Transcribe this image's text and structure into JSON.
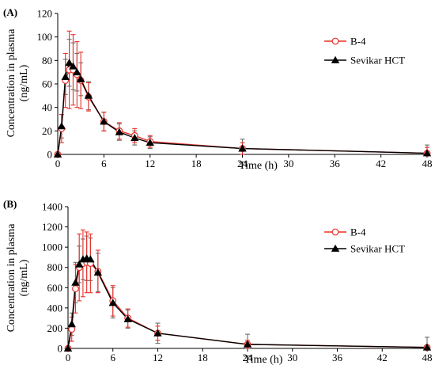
{
  "chart_data": [
    {
      "type": "line",
      "panel_label": "(A)",
      "xlabel": "Time (h)",
      "ylabel": "Concentration in plasma (ng/mL)",
      "xlim": [
        0,
        48
      ],
      "ylim": [
        0,
        120
      ],
      "x_ticks": [
        0,
        6,
        12,
        18,
        24,
        30,
        36,
        42,
        48
      ],
      "y_ticks": [
        0,
        20,
        40,
        60,
        80,
        100,
        120
      ],
      "legend_position": "top-right",
      "colors": {
        "B-4": "#e8312a",
        "Sevikar HCT": "#000000",
        "error_bar_sevikar": "#6e6e6e"
      },
      "series": [
        {
          "name": "B-4",
          "marker": "open-circle",
          "x": [
            0,
            0.5,
            1,
            1.5,
            2,
            2.5,
            3,
            4,
            6,
            8,
            10,
            12,
            24,
            48
          ],
          "values": [
            0,
            22,
            63,
            72,
            72,
            68,
            63,
            49,
            28,
            20,
            16,
            11,
            5,
            1
          ],
          "errors": [
            0,
            12,
            23,
            33,
            30,
            28,
            24,
            12,
            8,
            7,
            6,
            5,
            5,
            5
          ]
        },
        {
          "name": "Sevikar HCT",
          "marker": "filled-triangle",
          "x": [
            0,
            0.5,
            1,
            1.5,
            2,
            2.5,
            3,
            4,
            6,
            8,
            10,
            12,
            24,
            48
          ],
          "values": [
            0,
            24,
            66,
            78,
            75,
            70,
            64,
            50,
            28,
            19,
            14,
            10,
            5,
            1
          ],
          "errors": [
            0,
            10,
            15,
            20,
            20,
            16,
            14,
            12,
            8,
            7,
            6,
            5,
            8,
            7
          ]
        }
      ]
    },
    {
      "type": "line",
      "panel_label": "(B)",
      "xlabel": "Time (h)",
      "ylabel": "Concentration in plasma (ng/mL)",
      "xlim": [
        0,
        48
      ],
      "ylim": [
        0,
        1400
      ],
      "x_ticks": [
        0,
        6,
        12,
        18,
        24,
        30,
        36,
        42,
        48
      ],
      "y_ticks": [
        0,
        200,
        400,
        600,
        800,
        1000,
        1200,
        1400
      ],
      "legend_position": "top-right",
      "colors": {
        "B-4": "#e8312a",
        "Sevikar HCT": "#000000",
        "error_bar_sevikar": "#6e6e6e"
      },
      "series": [
        {
          "name": "B-4",
          "marker": "open-circle",
          "x": [
            0,
            0.5,
            1,
            1.5,
            2,
            2.5,
            3,
            4,
            6,
            8,
            12,
            24,
            48
          ],
          "values": [
            0,
            190,
            590,
            800,
            840,
            850,
            840,
            760,
            470,
            300,
            150,
            40,
            10
          ],
          "errors": [
            0,
            120,
            240,
            330,
            330,
            300,
            290,
            210,
            150,
            90,
            70,
            40,
            20
          ]
        },
        {
          "name": "Sevikar HCT",
          "marker": "filled-triangle",
          "x": [
            0,
            0.5,
            1,
            1.5,
            2,
            2.5,
            3,
            4,
            6,
            8,
            12,
            24,
            48
          ],
          "values": [
            0,
            240,
            650,
            830,
            880,
            890,
            880,
            750,
            450,
            290,
            150,
            40,
            10
          ],
          "errors": [
            0,
            110,
            200,
            180,
            200,
            220,
            210,
            190,
            150,
            90,
            100,
            100,
            100
          ]
        }
      ]
    }
  ]
}
